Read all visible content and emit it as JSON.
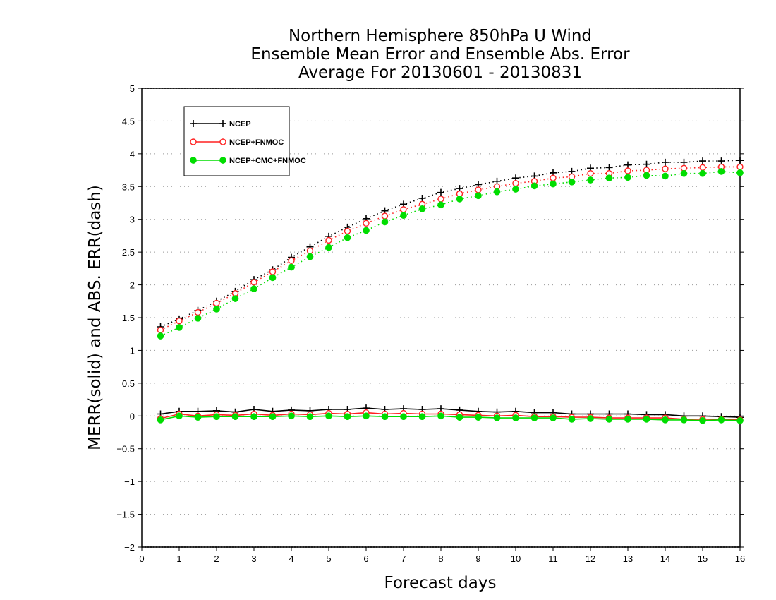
{
  "chart_data": {
    "type": "line",
    "title_lines": [
      "Northern Hemisphere 850hPa U Wind",
      "Ensemble Mean Error and Ensemble Abs. Error",
      "Average For 20130601 - 20130831"
    ],
    "xlabel": "Forecast days",
    "ylabel": "MERR(solid) and ABS. ERR(dash)",
    "xlim": [
      0,
      16
    ],
    "ylim": [
      -2,
      5
    ],
    "x_ticks": [
      0,
      1,
      2,
      3,
      4,
      5,
      6,
      7,
      8,
      9,
      10,
      11,
      12,
      13,
      14,
      15,
      16
    ],
    "y_ticks": [
      5,
      4.5,
      4,
      3.5,
      3,
      2.5,
      2,
      1.5,
      1,
      0.5,
      0,
      -0.5,
      -1,
      -1.5,
      -2
    ],
    "y_tick_labels": [
      "5",
      "4.5",
      "4",
      "3.5",
      "3",
      "2.5",
      "2",
      "1.5",
      "1",
      "0.5",
      "0",
      "−0.5",
      "−1",
      "−1.5",
      "−2"
    ],
    "grid": "horizontal dotted",
    "legend_position": "top-left",
    "x": [
      0.5,
      1,
      1.5,
      2,
      2.5,
      3,
      3.5,
      4,
      4.5,
      5,
      5.5,
      6,
      6.5,
      7,
      7.5,
      8,
      8.5,
      9,
      9.5,
      10,
      10.5,
      11,
      11.5,
      12,
      12.5,
      13,
      13.5,
      14,
      14.5,
      15,
      15.5,
      16
    ],
    "series": [
      {
        "name": "NCEP",
        "color": "#000000",
        "marker": "plus",
        "merr": [
          0.03,
          0.07,
          0.07,
          0.08,
          0.06,
          0.1,
          0.07,
          0.09,
          0.08,
          0.1,
          0.1,
          0.12,
          0.1,
          0.11,
          0.1,
          0.11,
          0.09,
          0.07,
          0.06,
          0.07,
          0.05,
          0.05,
          0.03,
          0.03,
          0.03,
          0.03,
          0.02,
          0.02,
          0.0,
          0.0,
          -0.01,
          -0.02
        ],
        "abs_err": [
          1.36,
          1.48,
          1.61,
          1.75,
          1.9,
          2.08,
          2.23,
          2.42,
          2.58,
          2.74,
          2.88,
          3.01,
          3.13,
          3.23,
          3.32,
          3.41,
          3.47,
          3.53,
          3.58,
          3.63,
          3.66,
          3.71,
          3.73,
          3.78,
          3.79,
          3.83,
          3.84,
          3.87,
          3.87,
          3.89,
          3.89,
          3.9
        ]
      },
      {
        "name": "NCEP+FNMOC",
        "color": "#ff2020",
        "marker": "open-circle",
        "merr": [
          -0.04,
          0.03,
          0.0,
          0.02,
          0.01,
          0.03,
          0.01,
          0.03,
          0.02,
          0.04,
          0.03,
          0.05,
          0.03,
          0.04,
          0.03,
          0.03,
          0.02,
          0.01,
          0.0,
          0.01,
          -0.01,
          -0.01,
          -0.02,
          -0.02,
          -0.03,
          -0.03,
          -0.03,
          -0.03,
          -0.05,
          -0.05,
          -0.05,
          -0.06
        ],
        "abs_err": [
          1.31,
          1.45,
          1.58,
          1.72,
          1.87,
          2.04,
          2.2,
          2.37,
          2.52,
          2.68,
          2.82,
          2.94,
          3.05,
          3.15,
          3.23,
          3.31,
          3.39,
          3.45,
          3.5,
          3.55,
          3.58,
          3.63,
          3.65,
          3.7,
          3.7,
          3.74,
          3.75,
          3.77,
          3.78,
          3.79,
          3.8,
          3.8
        ]
      },
      {
        "name": "NCEP+CMC+FNMOC",
        "color": "#00dd00",
        "marker": "filled-circle",
        "merr": [
          -0.06,
          0.0,
          -0.02,
          -0.01,
          -0.01,
          -0.01,
          -0.01,
          0.0,
          -0.01,
          0.0,
          -0.01,
          0.0,
          -0.01,
          -0.01,
          -0.01,
          0.0,
          -0.02,
          -0.02,
          -0.03,
          -0.03,
          -0.03,
          -0.03,
          -0.05,
          -0.04,
          -0.05,
          -0.05,
          -0.05,
          -0.06,
          -0.06,
          -0.07,
          -0.06,
          -0.07
        ],
        "abs_err": [
          1.22,
          1.35,
          1.49,
          1.63,
          1.79,
          1.94,
          2.11,
          2.27,
          2.43,
          2.57,
          2.72,
          2.83,
          2.96,
          3.06,
          3.16,
          3.22,
          3.31,
          3.36,
          3.42,
          3.46,
          3.51,
          3.54,
          3.57,
          3.6,
          3.63,
          3.64,
          3.67,
          3.66,
          3.7,
          3.7,
          3.73,
          3.71
        ]
      }
    ]
  }
}
